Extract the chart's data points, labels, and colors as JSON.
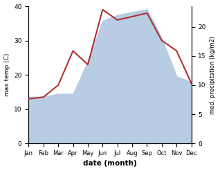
{
  "months": [
    "Jan",
    "Feb",
    "Mar",
    "Apr",
    "May",
    "Jun",
    "Jul",
    "Aug",
    "Sep",
    "Oct",
    "Nov",
    "Dec"
  ],
  "temp_C": [
    13.0,
    13.5,
    17.0,
    27.0,
    23.0,
    39.0,
    36.0,
    37.0,
    38.0,
    30.0,
    27.0,
    17.5
  ],
  "precip_mm": [
    8.0,
    8.0,
    8.5,
    8.5,
    14.0,
    21.0,
    22.0,
    22.5,
    23.0,
    18.0,
    11.5,
    10.5
  ],
  "temp_color": "#b03030",
  "precip_fill_color": "#b8cce4",
  "ylabel_left": "max temp (C)",
  "ylabel_right": "med. precipitation (kg/m2)",
  "xlabel": "date (month)",
  "ylim_left": [
    0,
    40
  ],
  "ylim_right": [
    0,
    23.5
  ],
  "yticks_left": [
    0,
    10,
    20,
    30,
    40
  ],
  "yticks_right": [
    0,
    5,
    10,
    15,
    20
  ],
  "background_color": "#ffffff"
}
